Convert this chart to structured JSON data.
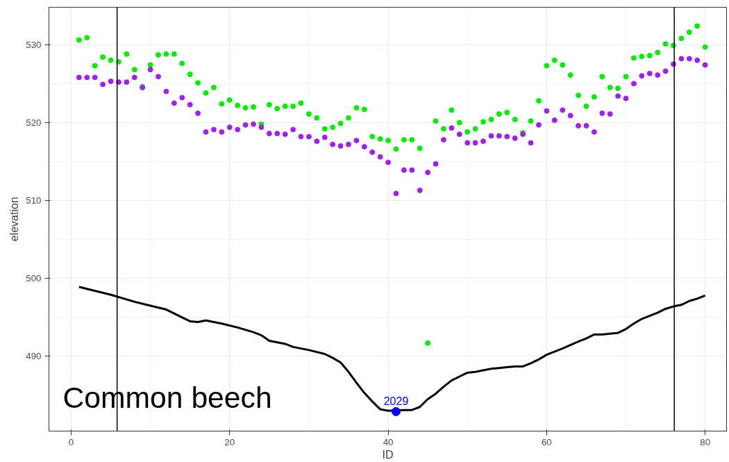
{
  "chart_data": {
    "type": "scatter",
    "xlabel": "ID",
    "ylabel": "elevation",
    "xlim": [
      -2.8,
      82.7
    ],
    "ylim": [
      480.4,
      534.8
    ],
    "xticks": [
      0,
      20,
      40,
      60,
      80
    ],
    "yticks": [
      490,
      500,
      510,
      520,
      530
    ],
    "grid": true,
    "marker": "circle",
    "series": [
      {
        "color": "#00ee00",
        "x": [
          1,
          2,
          3,
          4,
          5,
          6,
          7,
          8,
          9,
          10,
          11,
          12,
          13,
          14,
          15,
          16,
          17,
          18,
          19,
          20,
          21,
          22,
          23,
          24,
          25,
          26,
          27,
          28,
          29,
          30,
          31,
          32,
          33,
          34,
          35,
          36,
          37,
          38,
          39,
          40,
          41,
          42,
          43,
          44,
          45,
          46,
          47,
          48,
          49,
          50,
          51,
          52,
          53,
          54,
          55,
          56,
          57,
          58,
          59,
          60,
          61,
          62,
          63,
          64,
          65,
          66,
          67,
          68,
          69,
          70,
          71,
          72,
          73,
          74,
          75,
          76,
          77,
          78,
          79,
          80
        ],
        "values": [
          530.6,
          530.9,
          527.3,
          528.4,
          528.0,
          527.8,
          528.8,
          526.8,
          524.6,
          527.4,
          528.7,
          528.8,
          528.8,
          527.6,
          526.2,
          525.1,
          523.8,
          524.5,
          522.4,
          522.9,
          522.2,
          521.9,
          522.0,
          519.8,
          522.3,
          521.8,
          522.1,
          522.1,
          522.5,
          521.1,
          520.6,
          519.2,
          519.4,
          519.9,
          520.6,
          521.9,
          521.7,
          518.2,
          517.9,
          517.7,
          516.6,
          517.8,
          517.8,
          516.7,
          491.7,
          520.2,
          519.2,
          521.6,
          520.0,
          518.8,
          519.2,
          520.1,
          520.4,
          521.1,
          521.3,
          520.4,
          518.7,
          520.2,
          522.8,
          527.3,
          528.0,
          527.4,
          526.1,
          523.5,
          522.1,
          523.3,
          525.9,
          524.5,
          524.4,
          525.9,
          528.3,
          528.5,
          528.6,
          529.0,
          530.1,
          529.9,
          530.8,
          531.6,
          532.4,
          529.7
        ]
      },
      {
        "color": "#a020f0",
        "x": [
          1,
          2,
          3,
          4,
          5,
          6,
          7,
          8,
          9,
          10,
          11,
          12,
          13,
          14,
          15,
          16,
          17,
          18,
          19,
          20,
          21,
          22,
          23,
          24,
          25,
          26,
          27,
          28,
          29,
          30,
          31,
          32,
          33,
          34,
          35,
          36,
          37,
          38,
          39,
          40,
          41,
          42,
          43,
          44,
          45,
          46,
          47,
          48,
          49,
          50,
          51,
          52,
          53,
          54,
          55,
          56,
          57,
          58,
          59,
          60,
          61,
          62,
          63,
          64,
          65,
          66,
          67,
          68,
          69,
          70,
          71,
          72,
          73,
          74,
          75,
          76,
          77,
          78,
          79,
          80
        ],
        "values": [
          525.8,
          525.8,
          525.8,
          524.9,
          525.3,
          525.2,
          525.2,
          525.8,
          524.5,
          526.8,
          525.9,
          524.0,
          522.5,
          523.2,
          522.3,
          521.2,
          518.8,
          519.1,
          518.8,
          519.4,
          519.1,
          519.7,
          519.8,
          519.4,
          518.6,
          518.6,
          518.5,
          519.1,
          518.2,
          518.2,
          517.6,
          518.1,
          517.2,
          517.0,
          517.2,
          517.7,
          516.9,
          516.2,
          515.6,
          514.9,
          510.9,
          513.9,
          513.9,
          511.3,
          513.6,
          514.7,
          517.8,
          519.3,
          518.5,
          517.4,
          517.4,
          517.6,
          518.3,
          518.3,
          518.2,
          518.0,
          518.5,
          517.4,
          519.7,
          521.5,
          520.3,
          521.6,
          520.9,
          519.6,
          519.6,
          518.8,
          521.2,
          521.1,
          523.4,
          523.1,
          525.0,
          526.0,
          526.3,
          526.1,
          526.6,
          527.5,
          528.2,
          528.2,
          528.0,
          527.4
        ]
      },
      {
        "type": "line",
        "marker": "none",
        "color": "#000000",
        "x": [
          1,
          5,
          8,
          10,
          12,
          14,
          15,
          16,
          17,
          19,
          21,
          23,
          24,
          25,
          27,
          28,
          30,
          32,
          33,
          34,
          35,
          36,
          37,
          38,
          39,
          40,
          42,
          43,
          44,
          45,
          46,
          47,
          48,
          49,
          50,
          51,
          52,
          53,
          54,
          55,
          56,
          57,
          58,
          59,
          60,
          62,
          64,
          65,
          66,
          67,
          68,
          69,
          70,
          71,
          72,
          73,
          74,
          75,
          76,
          77,
          78,
          79,
          80
        ],
        "values": [
          498.9,
          497.9,
          497.0,
          496.5,
          496.0,
          495.0,
          494.5,
          494.4,
          494.6,
          494.2,
          493.7,
          493.1,
          492.7,
          492.0,
          491.6,
          491.2,
          490.8,
          490.3,
          489.8,
          489.2,
          488.0,
          486.6,
          485.3,
          484.2,
          483.2,
          483.0,
          483.1,
          483.1,
          483.5,
          484.5,
          485.2,
          486.1,
          486.9,
          487.4,
          487.9,
          488.0,
          488.2,
          488.4,
          488.5,
          488.6,
          488.7,
          488.7,
          489.1,
          489.6,
          490.2,
          491.0,
          491.9,
          492.3,
          492.8,
          492.8,
          492.9,
          493.0,
          493.5,
          494.2,
          494.8,
          495.2,
          495.6,
          496.1,
          496.4,
          496.6,
          497.1,
          497.4,
          497.8
        ]
      },
      {
        "color": "#0000ff",
        "x": [
          41
        ],
        "values": [
          482.9
        ]
      }
    ],
    "ref_lines": [
      {
        "axis": "x",
        "value": 5.8,
        "color": "#000000"
      },
      {
        "axis": "x",
        "value": 76.1,
        "color": "#000000"
      }
    ],
    "annotations": [
      {
        "text": "2029",
        "x": 41,
        "y": 482.9
      },
      "Common beech"
    ]
  }
}
